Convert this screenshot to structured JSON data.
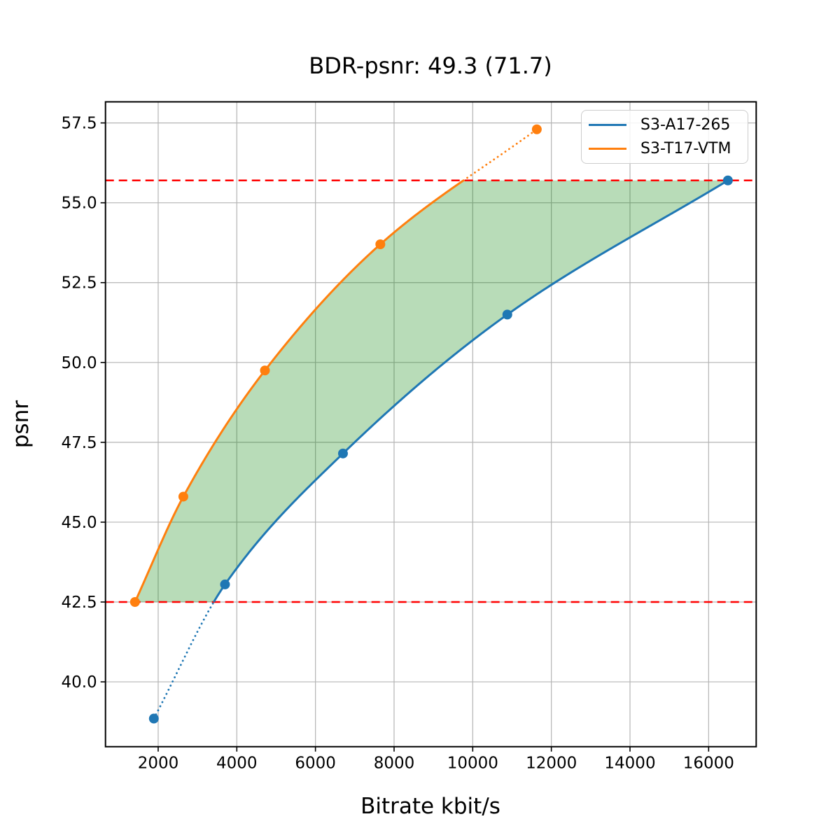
{
  "chart_data": {
    "type": "line",
    "title": "BDR-psnr: 49.3 (71.7)",
    "xlabel": "Bitrate kbit/s",
    "ylabel": "psnr",
    "xlim": [
      660,
      17210
    ],
    "ylim": [
      37.97,
      58.16
    ],
    "xticks": [
      2000,
      4000,
      6000,
      8000,
      10000,
      12000,
      14000,
      16000
    ],
    "yticks": [
      40.0,
      42.5,
      45.0,
      47.5,
      50.0,
      52.5,
      55.0,
      57.5
    ],
    "grid": true,
    "grid_color": "#b4b4b4",
    "legend_position": "upper right",
    "series": [
      {
        "name": "S3-A17-265",
        "color": "#1f77b4",
        "x": [
          1890,
          3700,
          6700,
          10880,
          16490
        ],
        "y": [
          38.85,
          43.05,
          47.15,
          51.5,
          55.7
        ]
      },
      {
        "name": "S3-T17-VTM",
        "color": "#ff7f0e",
        "x": [
          1410,
          2640,
          4715,
          7650,
          11630
        ],
        "y": [
          42.5,
          45.8,
          49.75,
          53.7,
          57.3
        ]
      }
    ],
    "reference_hlines": {
      "color": "#ff0000",
      "style": "dashed",
      "values": [
        42.5,
        55.7
      ]
    },
    "shaded_region": {
      "color": "rgba(0,128,0,0.28)",
      "description": "area between the two rate-distortion curves clipped to psnr range 42.5 to 55.7"
    },
    "line_style_note": "curve segments outside the psnr overlap range 42.5-55.7 are dotted"
  }
}
